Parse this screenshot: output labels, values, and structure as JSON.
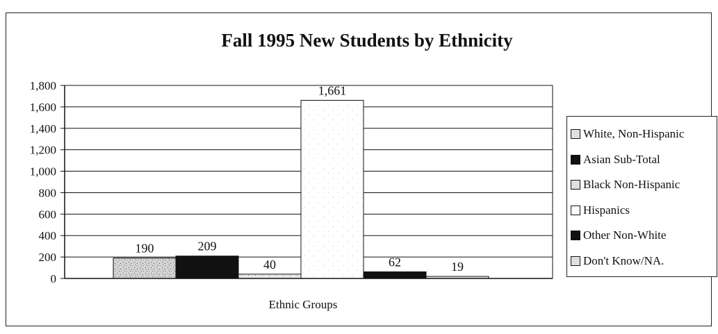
{
  "chart_data": {
    "type": "bar",
    "title": "Fall 1995 New Students by Ethnicity",
    "xlabel": "Ethnic Groups",
    "ylabel": "",
    "ylim": [
      0,
      1800
    ],
    "yticks": [
      "1,800",
      "1,600",
      "1,400",
      "1,200",
      "1,000",
      "800",
      "600",
      "400",
      "200",
      "0"
    ],
    "grid": true,
    "legend_position": "right",
    "series": [
      {
        "name": "White, Non-Hispanic",
        "value": 190,
        "label": "190",
        "color": "#d9d9d9",
        "pattern": "speckle-dark"
      },
      {
        "name": "Asian Sub-Total",
        "value": 209,
        "label": "209",
        "color": "#111111",
        "pattern": "solid"
      },
      {
        "name": "Black Non-Hispanic",
        "value": 40,
        "label": "40",
        "color": "#e6e6e6",
        "pattern": "speckle"
      },
      {
        "name": "Hispanics",
        "value": 1661,
        "label": "1,661",
        "color": "#ffffff",
        "pattern": "speckle-light"
      },
      {
        "name": "Other Non-White",
        "value": 62,
        "label": "62",
        "color": "#111111",
        "pattern": "solid"
      },
      {
        "name": "Don't Know/NA.",
        "value": 19,
        "label": "19",
        "color": "#cccccc",
        "pattern": "speckle"
      }
    ]
  }
}
